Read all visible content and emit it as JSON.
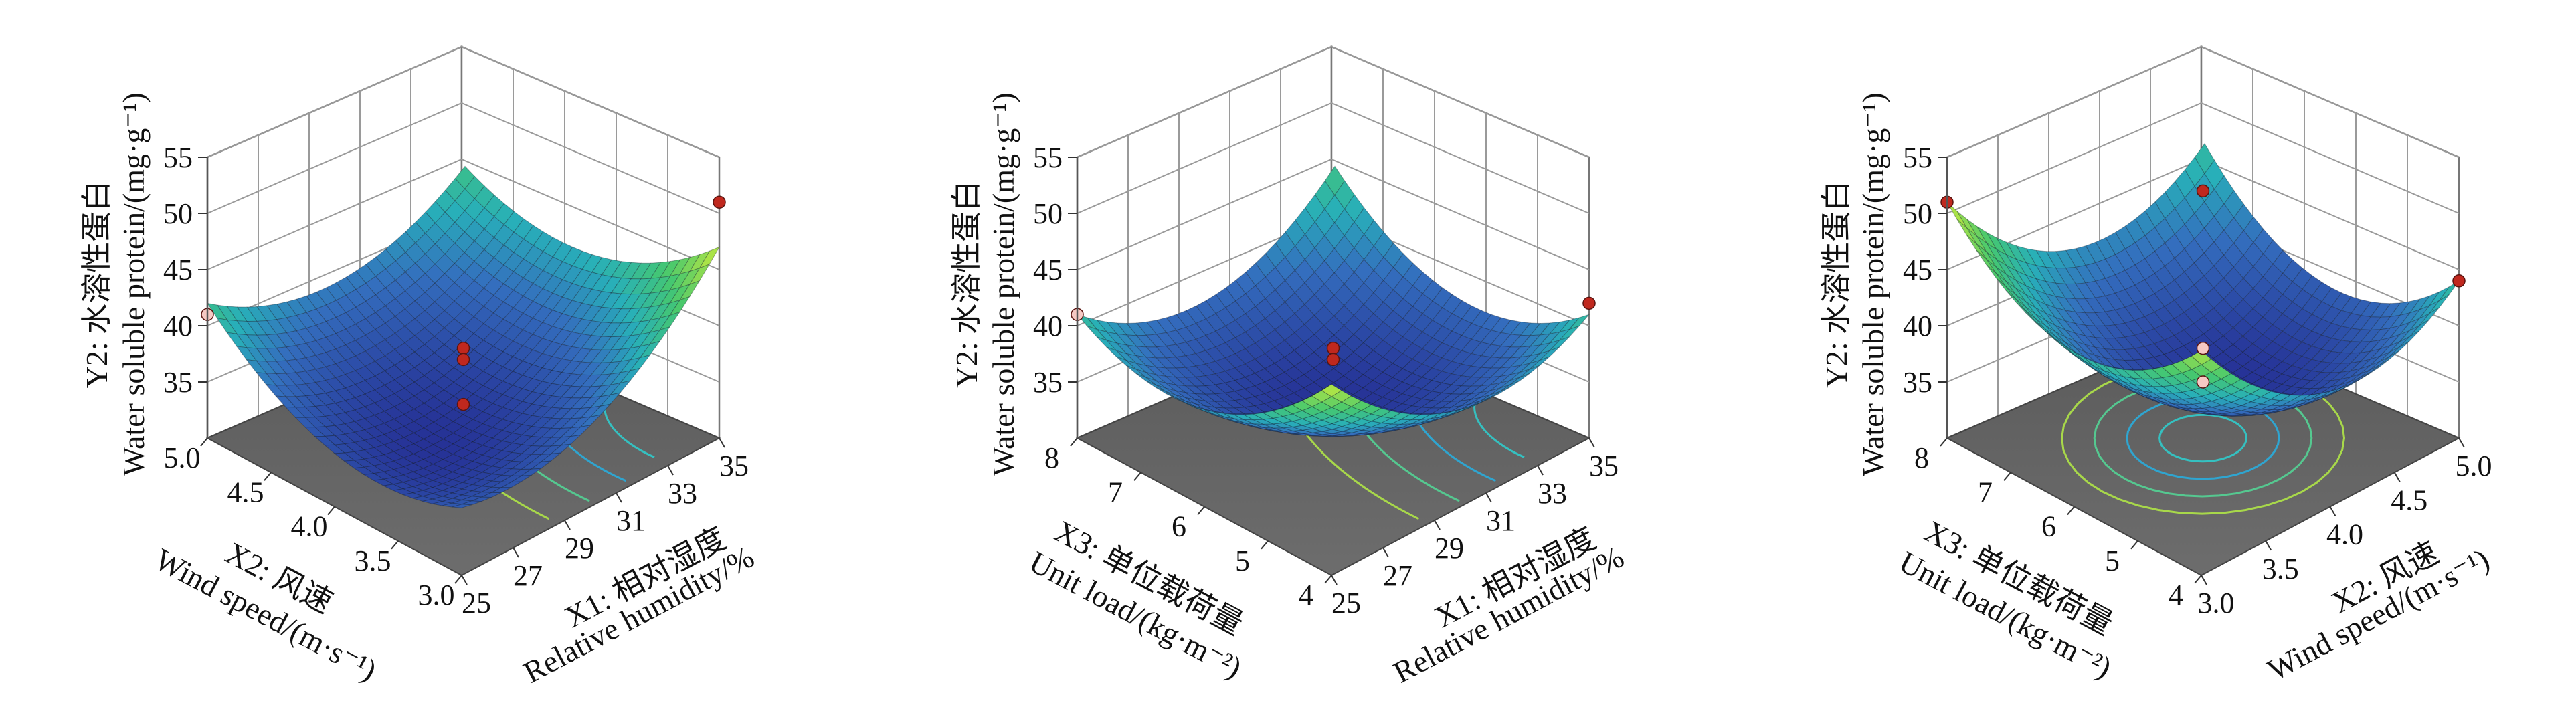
{
  "chart_data": [
    {
      "type": "surface",
      "panel": "a",
      "x_var": "X1",
      "y_var": "X2",
      "xlabel_cn": "X1: 相对湿度",
      "xlabel_en": "Relative humidity/%",
      "ylabel_cn": "X2: 风速",
      "ylabel_en": "Wind speed/(m·s⁻¹)",
      "zlabel_cn": "Y2: 水溶性蛋白",
      "zlabel_en": "Water soluble protein/(mg·g⁻¹)",
      "x_ticks": [
        "25",
        "27",
        "29",
        "31",
        "33",
        "35"
      ],
      "y_ticks": [
        "3.0",
        "3.5",
        "4.0",
        "4.5",
        "5.0"
      ],
      "z_ticks": [
        "35",
        "40",
        "45",
        "50",
        "55"
      ],
      "xlim": [
        25,
        35
      ],
      "ylim": [
        3.0,
        5.0
      ],
      "zlim": [
        30,
        55
      ],
      "surface_corners": {
        "xmin_ymin": 36,
        "xmax_ymin": 47,
        "xmin_ymax": 42,
        "xmax_ymax": 42
      },
      "surface_min": 34,
      "design_points": [
        {
          "x": 25,
          "y": 5.0,
          "z": 41
        },
        {
          "x": 35,
          "y": 3.0,
          "z": 51
        },
        {
          "x": 30,
          "y": 4.0,
          "z": 38
        },
        {
          "x": 30,
          "y": 4.0,
          "z": 37
        },
        {
          "x": 30,
          "y": 4.0,
          "z": 33
        }
      ]
    },
    {
      "type": "surface",
      "panel": "b",
      "x_var": "X1",
      "y_var": "X3",
      "xlabel_cn": "X1: 相对湿度",
      "xlabel_en": "Relative humidity/%",
      "ylabel_cn": "X3: 单位载荷量",
      "ylabel_en": "Unit load/(kg·m⁻²)",
      "zlabel_cn": "Y2: 水溶性蛋白",
      "zlabel_en": "Water soluble protein/(mg·g⁻¹)",
      "x_ticks": [
        "25",
        "27",
        "29",
        "31",
        "33",
        "35"
      ],
      "y_ticks": [
        "4",
        "5",
        "6",
        "7",
        "8"
      ],
      "z_ticks": [
        "35",
        "40",
        "45",
        "50",
        "55"
      ],
      "xlim": [
        25,
        35
      ],
      "ylim": [
        4,
        8
      ],
      "zlim": [
        30,
        55
      ],
      "surface_corners": {
        "xmin_ymin": 47,
        "xmax_ymin": 41,
        "xmin_ymax": 41,
        "xmax_ymax": 42
      },
      "surface_min": 33,
      "design_points": [
        {
          "x": 25,
          "y": 8,
          "z": 41
        },
        {
          "x": 35,
          "y": 4,
          "z": 42
        },
        {
          "x": 30,
          "y": 6,
          "z": 38
        },
        {
          "x": 30,
          "y": 6,
          "z": 37
        }
      ]
    },
    {
      "type": "surface",
      "panel": "c",
      "x_var": "X2",
      "y_var": "X3",
      "xlabel_cn": "X2: 风速",
      "xlabel_en": "Wind speed/(m·s⁻¹)",
      "ylabel_cn": "X3: 单位载荷量",
      "ylabel_en": "Unit load/(kg·m⁻²)",
      "zlabel_cn": "Y2: 水溶性蛋白",
      "zlabel_en": "Water soluble protein/(mg·g⁻¹)",
      "x_ticks": [
        "3.0",
        "3.5",
        "4.0",
        "4.5",
        "5.0"
      ],
      "y_ticks": [
        "4",
        "5",
        "6",
        "7",
        "8"
      ],
      "z_ticks": [
        "35",
        "40",
        "45",
        "50",
        "55"
      ],
      "xlim": [
        3.0,
        5.0
      ],
      "ylim": [
        4,
        8
      ],
      "zlim": [
        30,
        55
      ],
      "surface_corners": {
        "xmin_ymin": 50,
        "xmax_ymin": 44,
        "xmin_ymax": 51,
        "xmax_ymax": 44
      },
      "surface_min": 35,
      "design_points": [
        {
          "x": 3.0,
          "y": 8,
          "z": 51
        },
        {
          "x": 5.0,
          "y": 4,
          "z": 44
        },
        {
          "x": 4.0,
          "y": 6,
          "z": 52
        },
        {
          "x": 4.0,
          "y": 6,
          "z": 38
        },
        {
          "x": 4.0,
          "y": 6,
          "z": 35
        }
      ]
    }
  ]
}
